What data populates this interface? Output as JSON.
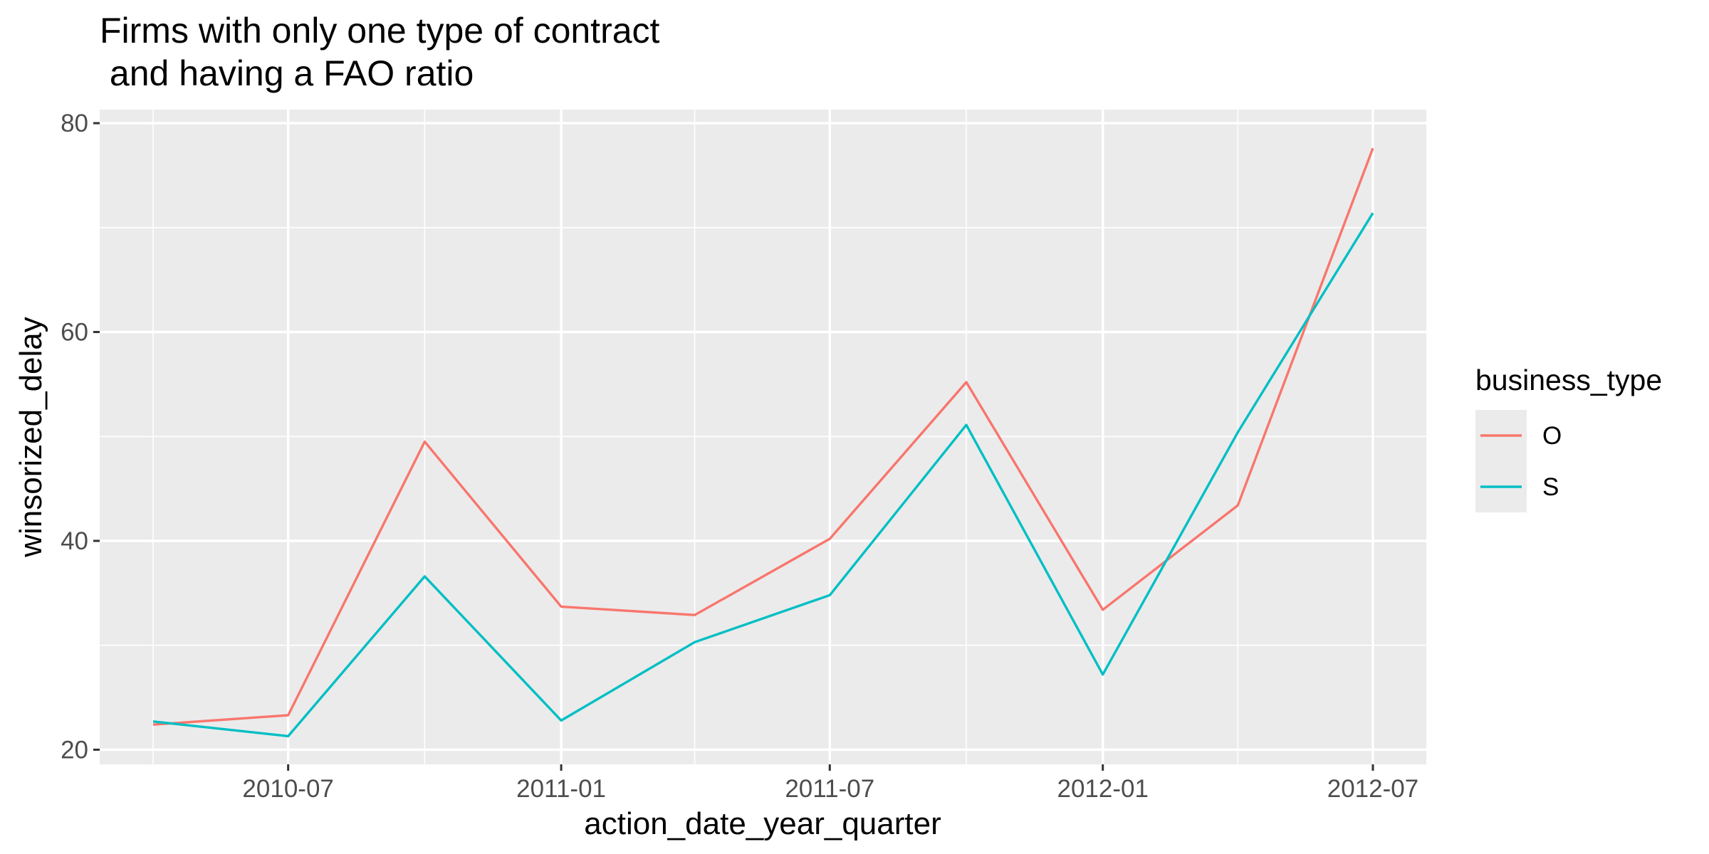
{
  "chart_data": {
    "type": "line",
    "title_lines": [
      "Firms with only one type of contract",
      " and having a FAO ratio"
    ],
    "xlabel": "action_date_year_quarter",
    "ylabel": "winsorized_delay",
    "x": [
      "2010-04-01",
      "2010-07-01",
      "2010-10-01",
      "2011-01-01",
      "2011-04-01",
      "2011-07-01",
      "2011-10-01",
      "2012-01-01",
      "2012-04-01",
      "2012-07-01"
    ],
    "x_ticks": [
      "2010-07",
      "2011-01",
      "2011-07",
      "2012-01",
      "2012-07"
    ],
    "x_tick_dates": [
      "2010-07-01",
      "2011-01-01",
      "2011-07-01",
      "2012-01-01",
      "2012-07-01"
    ],
    "y_ticks": [
      20,
      40,
      60,
      80
    ],
    "ylim": [
      18.6,
      81.3
    ],
    "xlim": [
      "2010-02-24",
      "2012-08-06"
    ],
    "grid": true,
    "legend_position": "right",
    "legend_title": "business_type",
    "series": [
      {
        "name": "O",
        "color": "#F8766D",
        "values": [
          22.4,
          23.3,
          49.5,
          33.7,
          32.9,
          40.2,
          55.2,
          33.4,
          43.4,
          77.6
        ]
      },
      {
        "name": "S",
        "color": "#00BFC4",
        "values": [
          22.7,
          21.3,
          36.6,
          22.8,
          30.3,
          34.8,
          51.1,
          27.2,
          50.4,
          71.4
        ]
      }
    ],
    "colors": {
      "panel": "#EBEBEB",
      "grid": "#FFFFFF",
      "tick_text": "#4D4D4D",
      "tick_mark": "#333333"
    }
  }
}
